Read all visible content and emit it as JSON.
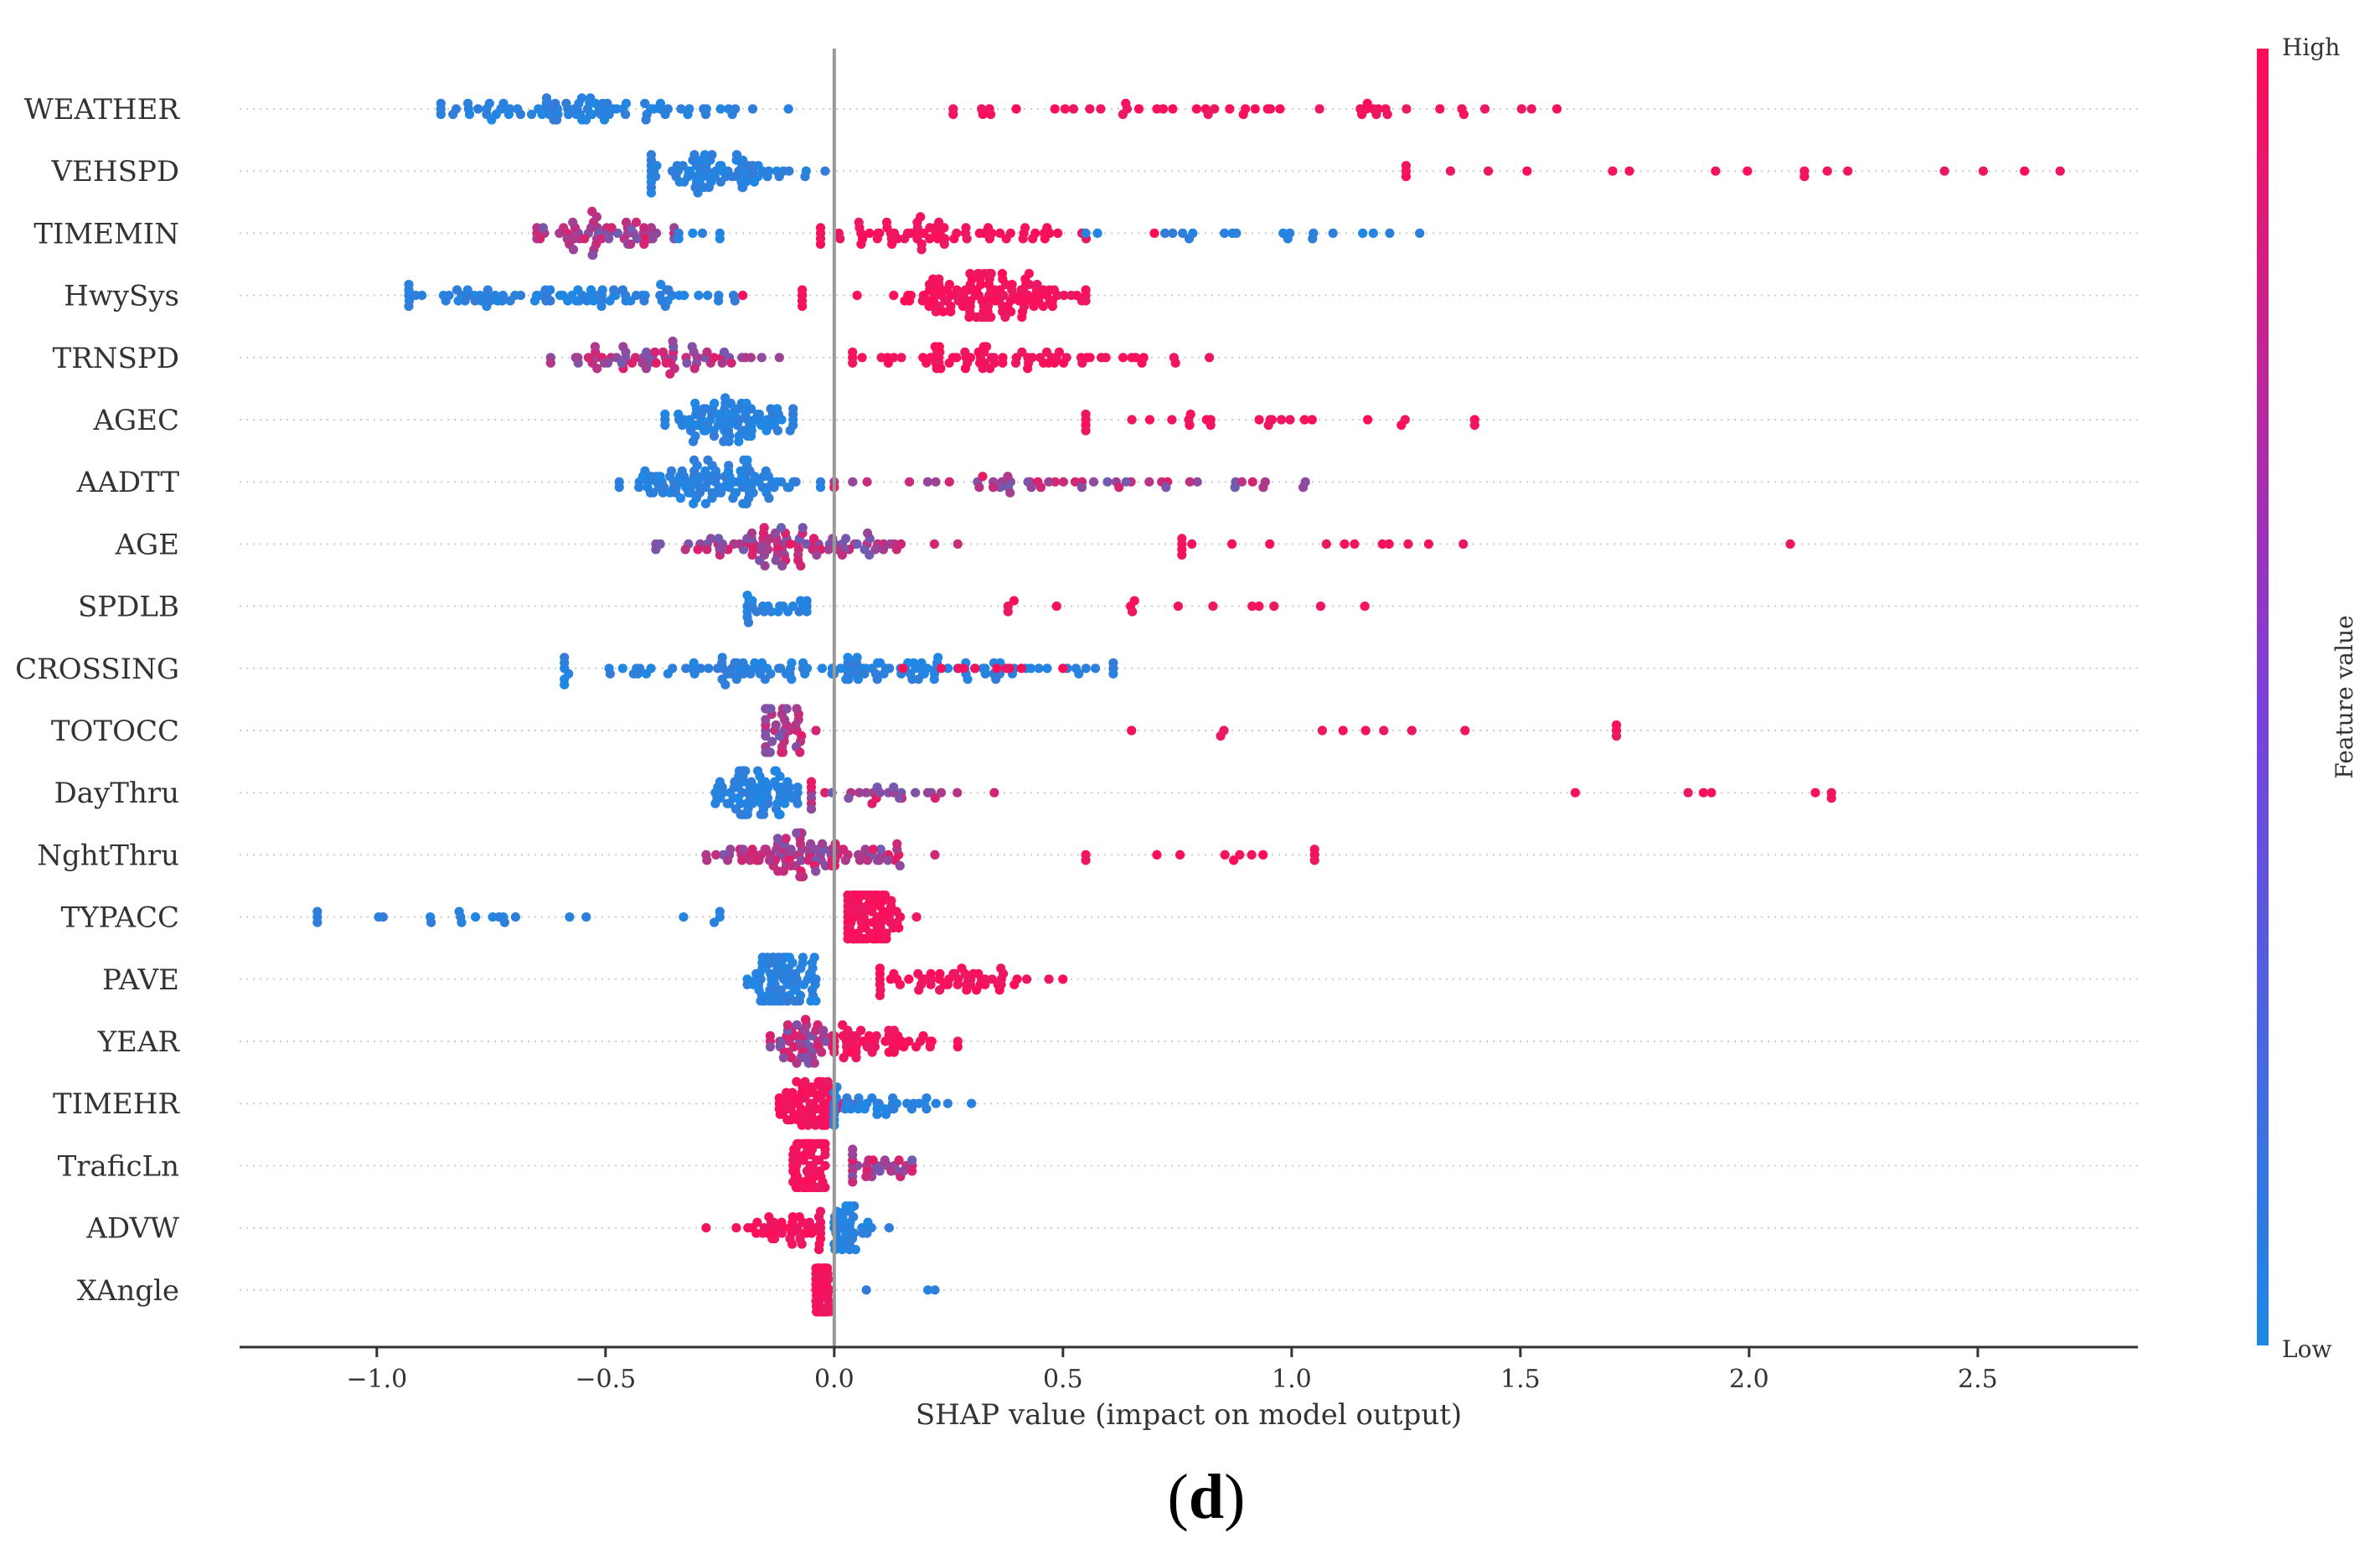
{
  "chart_data": {
    "type": "scatter",
    "subtype": "shap-beeswarm",
    "panel_label_open": "(",
    "panel_label_letter": "d",
    "panel_label_close": ")",
    "xlabel": "SHAP value (impact on model output)",
    "xlim": [
      -1.3,
      2.85
    ],
    "xticks": [
      -1.0,
      -0.5,
      0.0,
      0.5,
      1.0,
      1.5,
      2.0,
      2.5
    ],
    "xtick_labels": [
      "−1.0",
      "−0.5",
      "0.0",
      "0.5",
      "1.0",
      "1.5",
      "2.0",
      "2.5"
    ],
    "colorbar": {
      "label": "Feature value",
      "high_label": "High",
      "low_label": "Low",
      "high_color": "#ff0d57",
      "low_color": "#1e88e5"
    },
    "features": [
      {
        "name": "WEATHER",
        "clusters": [
          {
            "from": -0.86,
            "to": -0.1,
            "n": 85,
            "color": "low",
            "center": -0.55,
            "spread": 0.16
          },
          {
            "from": 0.26,
            "to": 1.58,
            "n": 48,
            "color": "high",
            "center": 0.8,
            "spread": 0.35
          }
        ]
      },
      {
        "name": "VEHSPD",
        "clusters": [
          {
            "from": -0.4,
            "to": -0.02,
            "n": 80,
            "color": "low",
            "center": -0.25,
            "spread": 0.09
          },
          {
            "from": 1.25,
            "to": 2.68,
            "n": 18,
            "color": "high",
            "center": 1.9,
            "spread": 0.5
          }
        ]
      },
      {
        "name": "TIMEMIN",
        "clusters": [
          {
            "from": -0.65,
            "to": -0.35,
            "n": 60,
            "color": "mid",
            "center": -0.5,
            "spread": 0.08
          },
          {
            "from": -0.34,
            "to": -0.25,
            "n": 6,
            "color": "low",
            "center": -0.3,
            "spread": 0.04
          },
          {
            "from": -0.03,
            "to": 0.7,
            "n": 70,
            "color": "high",
            "center": 0.25,
            "spread": 0.16
          },
          {
            "from": 0.55,
            "to": 1.28,
            "n": 20,
            "color": "low",
            "center": 0.85,
            "spread": 0.2
          }
        ]
      },
      {
        "name": "HwySys",
        "clusters": [
          {
            "from": -0.93,
            "to": -0.2,
            "n": 85,
            "color": "low",
            "center": -0.58,
            "spread": 0.2
          },
          {
            "from": -0.2,
            "to": -0.07,
            "n": 5,
            "color": "high",
            "center": -0.12,
            "spread": 0.05
          },
          {
            "from": 0.05,
            "to": 0.55,
            "n": 130,
            "color": "high",
            "center": 0.32,
            "spread": 0.1
          }
        ]
      },
      {
        "name": "TRNSPD",
        "clusters": [
          {
            "from": -0.62,
            "to": -0.12,
            "n": 65,
            "color": "mid",
            "center": -0.38,
            "spread": 0.11
          },
          {
            "from": 0.04,
            "to": 0.82,
            "n": 75,
            "color": "high",
            "center": 0.35,
            "spread": 0.16
          }
        ]
      },
      {
        "name": "AGEC",
        "clusters": [
          {
            "from": -0.37,
            "to": -0.09,
            "n": 90,
            "color": "low",
            "center": -0.22,
            "spread": 0.07
          },
          {
            "from": 0.55,
            "to": 1.4,
            "n": 26,
            "color": "high",
            "center": 0.9,
            "spread": 0.25
          }
        ]
      },
      {
        "name": "AADTT",
        "clusters": [
          {
            "from": -0.47,
            "to": -0.03,
            "n": 110,
            "color": "low",
            "center": -0.25,
            "spread": 0.11
          },
          {
            "from": 0.0,
            "to": 1.03,
            "n": 50,
            "color": "mid",
            "center": 0.5,
            "spread": 0.25
          }
        ]
      },
      {
        "name": "AGE",
        "clusters": [
          {
            "from": -0.39,
            "to": 0.27,
            "n": 95,
            "color": "mid",
            "center": -0.1,
            "spread": 0.14
          },
          {
            "from": 0.76,
            "to": 2.09,
            "n": 16,
            "color": "high",
            "center": 1.1,
            "spread": 0.3
          }
        ]
      },
      {
        "name": "SPDLB",
        "clusters": [
          {
            "from": -0.19,
            "to": -0.06,
            "n": 24,
            "color": "low",
            "center": -0.13,
            "spread": 0.04
          },
          {
            "from": 0.38,
            "to": 1.16,
            "n": 14,
            "color": "high",
            "center": 0.8,
            "spread": 0.25
          }
        ]
      },
      {
        "name": "CROSSING",
        "clusters": [
          {
            "from": -0.59,
            "to": 0.61,
            "n": 140,
            "color": "low",
            "center": 0.0,
            "spread": 0.28
          },
          {
            "from": 0.15,
            "to": 0.5,
            "n": 10,
            "color": "high",
            "center": 0.3,
            "spread": 0.1
          }
        ]
      },
      {
        "name": "TOTOCC",
        "clusters": [
          {
            "from": -0.15,
            "to": -0.04,
            "n": 40,
            "color": "mid",
            "center": -0.11,
            "spread": 0.03
          },
          {
            "from": 0.65,
            "to": 1.71,
            "n": 12,
            "color": "high",
            "center": 1.3,
            "spread": 0.35
          }
        ]
      },
      {
        "name": "DayThru",
        "clusters": [
          {
            "from": -0.26,
            "to": -0.08,
            "n": 85,
            "color": "low",
            "center": -0.17,
            "spread": 0.05
          },
          {
            "from": -0.05,
            "to": 0.35,
            "n": 30,
            "color": "mid",
            "center": 0.1,
            "spread": 0.1
          },
          {
            "from": 1.62,
            "to": 2.18,
            "n": 7,
            "color": "high",
            "center": 2.0,
            "spread": 0.15
          }
        ]
      },
      {
        "name": "NghtThru",
        "clusters": [
          {
            "from": -0.28,
            "to": 0.22,
            "n": 100,
            "color": "mid",
            "center": -0.08,
            "spread": 0.11
          },
          {
            "from": 0.55,
            "to": 1.05,
            "n": 12,
            "color": "high",
            "center": 0.85,
            "spread": 0.13
          }
        ]
      },
      {
        "name": "TYPACC",
        "clusters": [
          {
            "from": -1.13,
            "to": -0.25,
            "n": 22,
            "color": "low",
            "center": -0.65,
            "spread": 0.25
          },
          {
            "from": 0.03,
            "to": 0.18,
            "n": 110,
            "color": "high",
            "center": 0.07,
            "spread": 0.04
          }
        ]
      },
      {
        "name": "PAVE",
        "clusters": [
          {
            "from": -0.19,
            "to": -0.04,
            "n": 90,
            "color": "low",
            "center": -0.11,
            "spread": 0.04
          },
          {
            "from": 0.1,
            "to": 0.5,
            "n": 55,
            "color": "high",
            "center": 0.25,
            "spread": 0.1
          }
        ]
      },
      {
        "name": "YEAR",
        "clusters": [
          {
            "from": -0.14,
            "to": 0.0,
            "n": 55,
            "color": "mid",
            "center": -0.07,
            "spread": 0.04
          },
          {
            "from": 0.0,
            "to": 0.27,
            "n": 50,
            "color": "high",
            "center": 0.1,
            "spread": 0.07
          }
        ]
      },
      {
        "name": "TIMEHR",
        "clusters": [
          {
            "from": -0.12,
            "to": 0.05,
            "n": 70,
            "color": "high",
            "center": -0.05,
            "spread": 0.04
          },
          {
            "from": 0.0,
            "to": 0.3,
            "n": 40,
            "color": "low",
            "center": 0.1,
            "spread": 0.08
          }
        ]
      },
      {
        "name": "TraficLn",
        "clusters": [
          {
            "from": -0.09,
            "to": -0.02,
            "n": 90,
            "color": "high",
            "center": -0.055,
            "spread": 0.02
          },
          {
            "from": 0.04,
            "to": 0.17,
            "n": 30,
            "color": "mid",
            "center": 0.1,
            "spread": 0.04
          }
        ]
      },
      {
        "name": "ADVW",
        "clusters": [
          {
            "from": -0.28,
            "to": -0.03,
            "n": 45,
            "color": "high",
            "center": -0.1,
            "spread": 0.06
          },
          {
            "from": 0.0,
            "to": 0.12,
            "n": 35,
            "color": "low",
            "center": 0.03,
            "spread": 0.03
          }
        ]
      },
      {
        "name": "XAngle",
        "clusters": [
          {
            "from": -0.04,
            "to": -0.01,
            "n": 55,
            "color": "high",
            "center": -0.025,
            "spread": 0.01
          },
          {
            "from": 0.07,
            "to": 0.22,
            "n": 3,
            "color": "low",
            "center": 0.14,
            "spread": 0.06
          }
        ]
      }
    ]
  }
}
